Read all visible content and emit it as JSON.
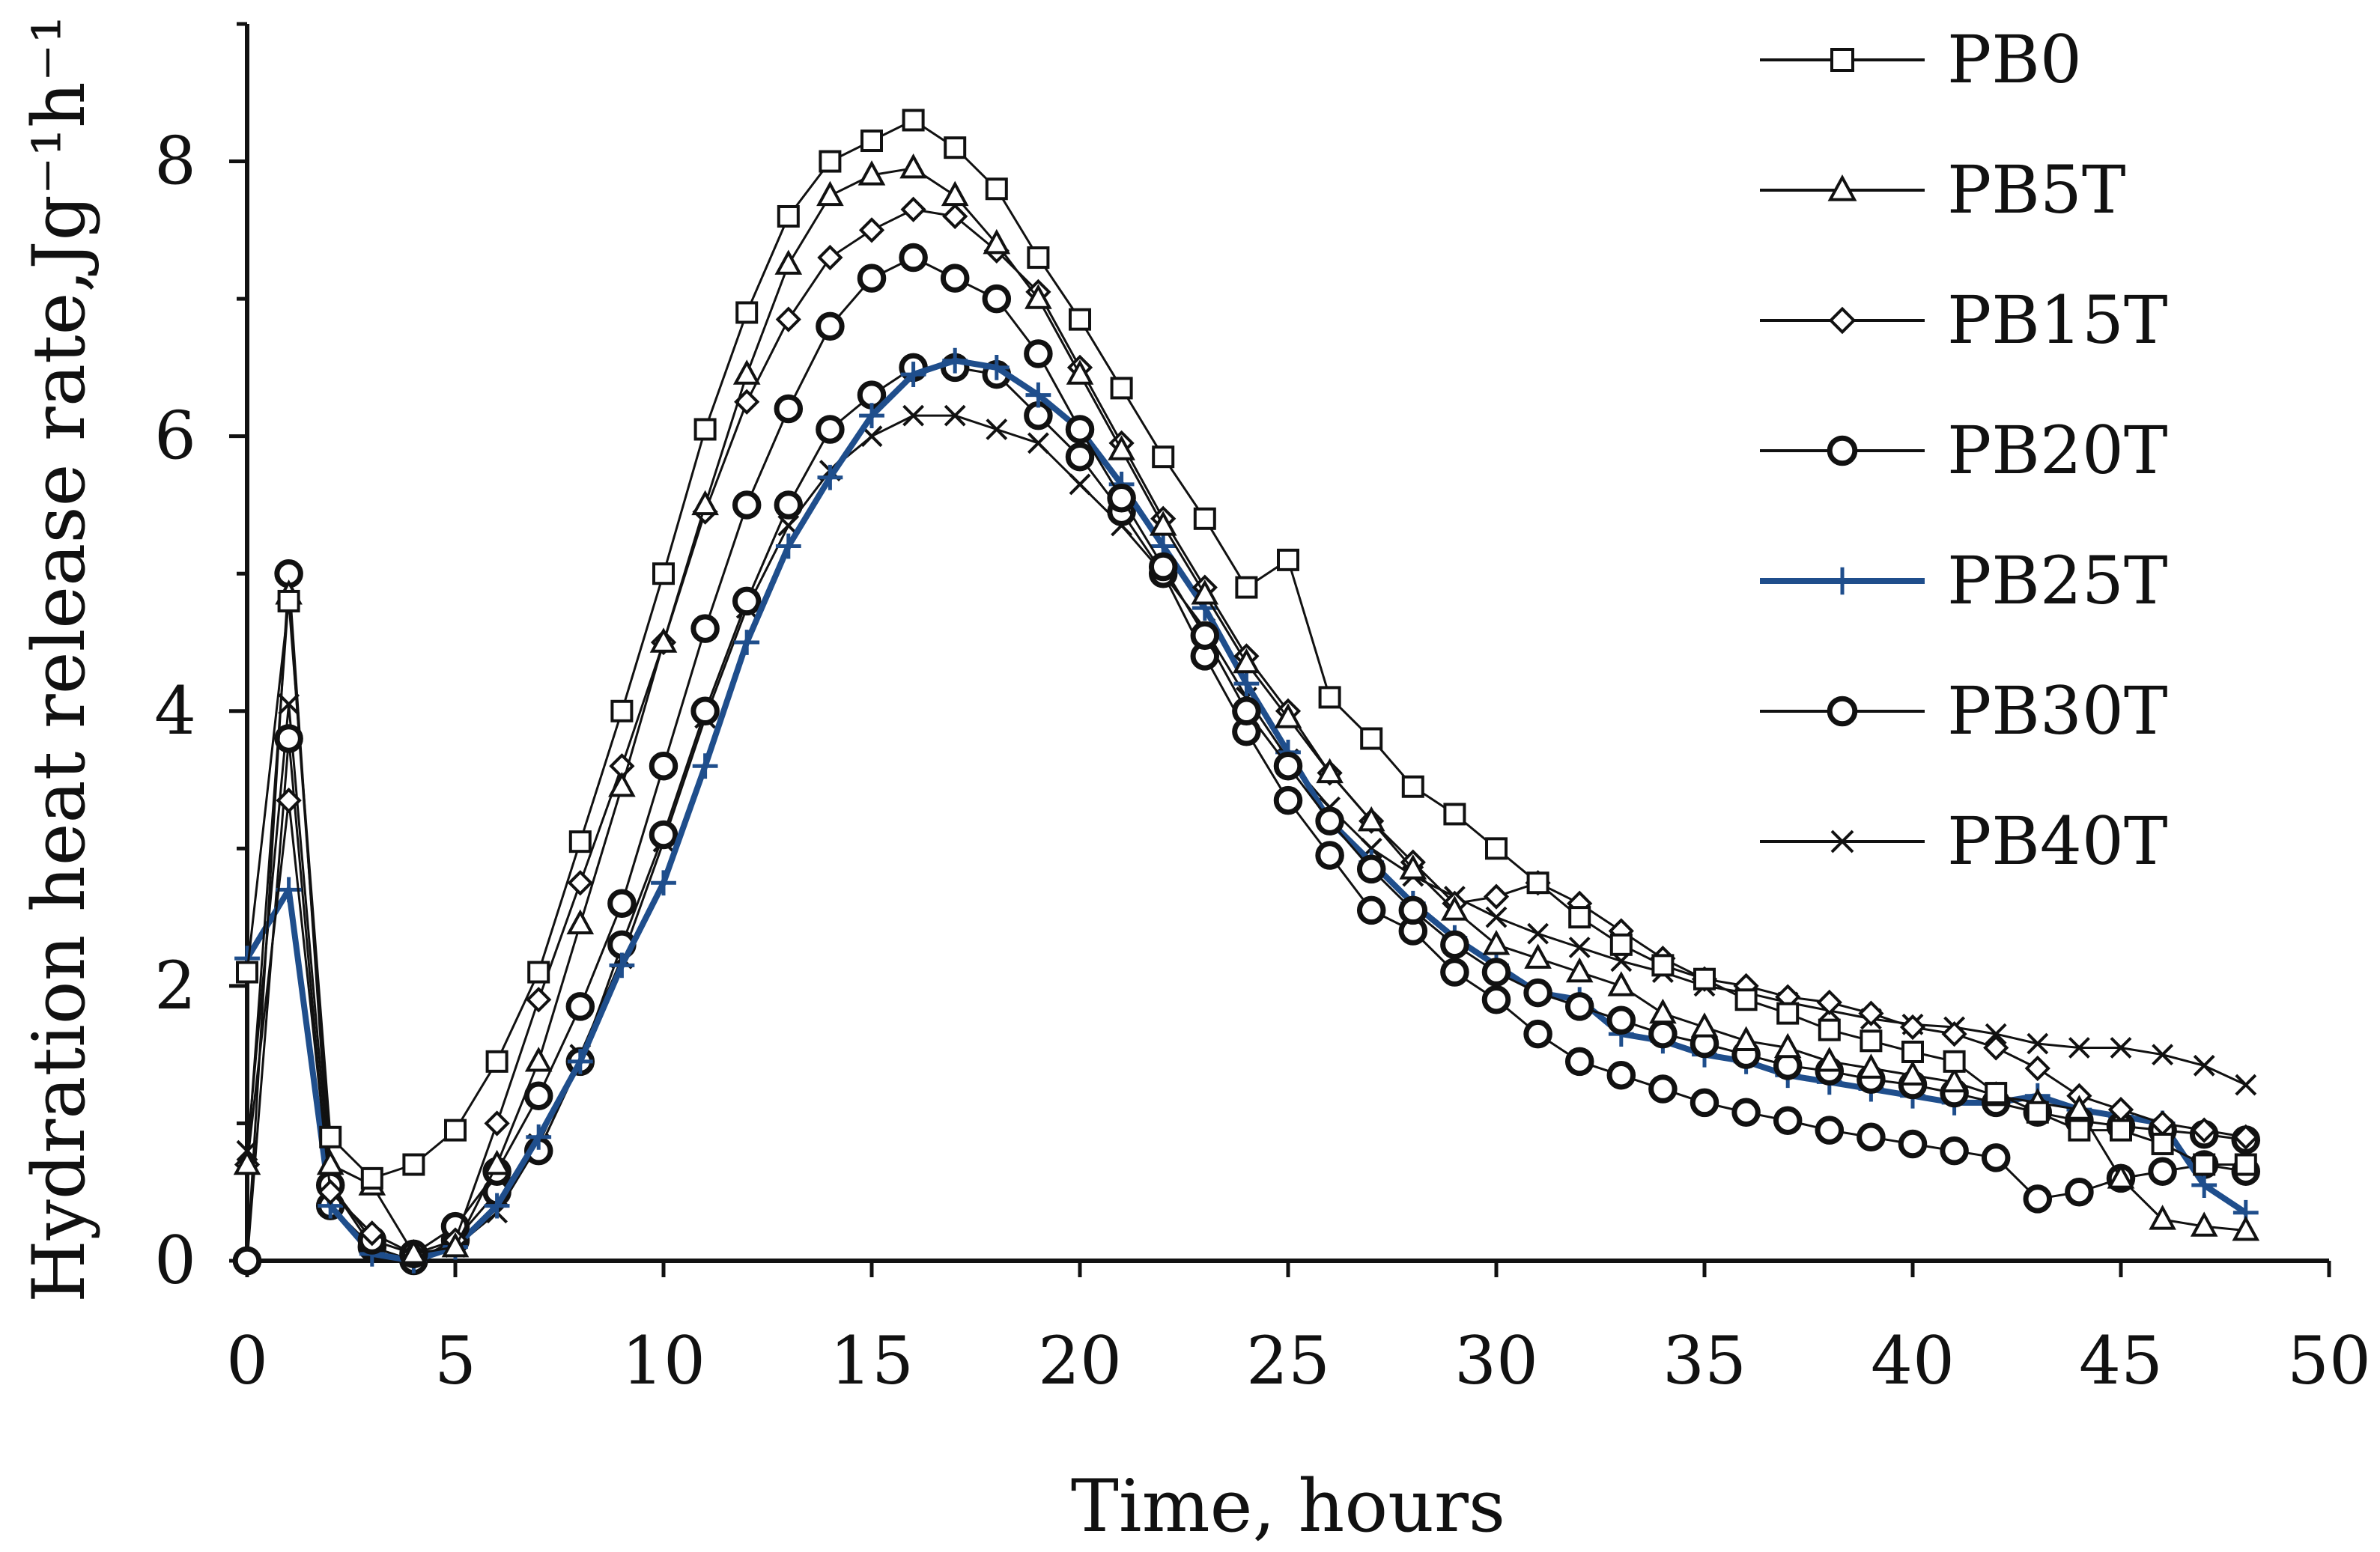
{
  "chart_data": {
    "type": "line",
    "title": "",
    "xlabel": "Time, hours",
    "ylabel": "Hydration heat release rate,Jg⁻¹h⁻¹",
    "xlim": [
      0,
      50
    ],
    "ylim": [
      0,
      9
    ],
    "xticks": [
      0,
      5,
      10,
      15,
      20,
      25,
      30,
      35,
      40,
      45,
      50
    ],
    "xtick_labels": [
      "0",
      "5",
      "10",
      "15",
      "20",
      "25",
      "30",
      "35",
      "40",
      "45",
      "50"
    ],
    "yticks": [
      0,
      2,
      4,
      6,
      8
    ],
    "ytick_labels": [
      "0",
      "2",
      "4",
      "6",
      "8"
    ],
    "grid": false,
    "legend_position": "top-right",
    "x": [
      0,
      1,
      2,
      3,
      4,
      5,
      6,
      7,
      8,
      9,
      10,
      11,
      12,
      13,
      14,
      15,
      16,
      17,
      18,
      19,
      20,
      21,
      22,
      23,
      24,
      25,
      26,
      27,
      28,
      29,
      30,
      31,
      32,
      33,
      34,
      35,
      36,
      37,
      38,
      39,
      40,
      41,
      42,
      43,
      44,
      45,
      46,
      47,
      48
    ],
    "series": [
      {
        "name": "PB0",
        "marker": "square",
        "color": "#111111",
        "values": [
          2.1,
          4.8,
          0.9,
          0.6,
          0.7,
          0.95,
          1.45,
          2.1,
          3.05,
          4.0,
          5.0,
          6.05,
          6.9,
          7.6,
          8.0,
          8.15,
          8.3,
          8.1,
          7.8,
          7.3,
          6.85,
          6.35,
          5.85,
          5.4,
          4.9,
          5.1,
          4.1,
          3.8,
          3.45,
          3.25,
          3.0,
          2.75,
          2.5,
          2.3,
          2.15,
          2.05,
          1.9,
          1.8,
          1.68,
          1.6,
          1.52,
          1.45,
          1.22,
          1.08,
          0.95,
          0.95,
          0.85,
          0.7,
          0.7
        ]
      },
      {
        "name": "PB5T",
        "marker": "triangle",
        "color": "#111111",
        "values": [
          0.7,
          4.85,
          0.7,
          0.55,
          0.05,
          0.1,
          0.7,
          1.45,
          2.45,
          3.45,
          4.5,
          5.5,
          6.45,
          7.25,
          7.75,
          7.9,
          7.95,
          7.75,
          7.4,
          7.0,
          6.45,
          5.9,
          5.35,
          4.85,
          4.35,
          3.95,
          3.55,
          3.2,
          2.85,
          2.55,
          2.3,
          2.2,
          2.1,
          2.0,
          1.8,
          1.7,
          1.6,
          1.55,
          1.45,
          1.4,
          1.35,
          1.3,
          1.2,
          1.15,
          1.1,
          0.6,
          0.3,
          0.25,
          0.22
        ]
      },
      {
        "name": "PB15T",
        "marker": "diamond",
        "color": "#111111",
        "values": [
          0.7,
          3.35,
          0.5,
          0.2,
          0.05,
          0.15,
          1.0,
          1.9,
          2.75,
          3.6,
          4.5,
          5.45,
          6.25,
          6.85,
          7.3,
          7.5,
          7.65,
          7.6,
          7.35,
          7.05,
          6.5,
          5.95,
          5.4,
          4.9,
          4.4,
          4.0,
          3.55,
          3.2,
          2.9,
          2.6,
          2.65,
          2.75,
          2.6,
          2.4,
          2.2,
          2.05,
          2.0,
          1.92,
          1.88,
          1.8,
          1.7,
          1.65,
          1.55,
          1.4,
          1.2,
          1.1,
          1.0,
          0.95,
          0.9
        ]
      },
      {
        "name": "PB20T",
        "marker": "circle",
        "color": "#111111",
        "values": [
          0.0,
          5.0,
          0.55,
          0.15,
          0.05,
          0.25,
          0.65,
          1.2,
          1.85,
          2.6,
          3.6,
          4.6,
          5.5,
          6.2,
          6.8,
          7.15,
          7.3,
          7.15,
          7.0,
          6.6,
          6.05,
          5.55,
          5.05,
          4.55,
          4.0,
          3.6,
          3.2,
          2.85,
          2.55,
          2.3,
          2.1,
          1.95,
          1.85,
          1.75,
          1.65,
          1.58,
          1.5,
          1.42,
          1.38,
          1.32,
          1.28,
          1.22,
          1.15,
          1.08,
          1.02,
          0.98,
          0.95,
          0.92,
          0.88
        ]
      },
      {
        "name": "PB25T",
        "marker": "plus",
        "color": "#1f4e8c",
        "values": [
          2.2,
          2.7,
          0.4,
          0.05,
          0.0,
          0.1,
          0.4,
          0.9,
          1.45,
          2.15,
          2.75,
          3.6,
          4.5,
          5.2,
          5.7,
          6.15,
          6.45,
          6.55,
          6.5,
          6.3,
          6.05,
          5.65,
          5.2,
          4.75,
          4.2,
          3.7,
          3.2,
          2.9,
          2.6,
          2.35,
          2.15,
          1.95,
          1.9,
          1.65,
          1.6,
          1.5,
          1.45,
          1.35,
          1.3,
          1.25,
          1.2,
          1.15,
          1.15,
          1.2,
          1.1,
          1.05,
          1.0,
          0.55,
          0.35
        ]
      },
      {
        "name": "PB30T",
        "marker": "circle",
        "color": "#111111",
        "values": [
          0.0,
          3.8,
          0.4,
          0.1,
          0.0,
          0.15,
          0.5,
          0.8,
          1.45,
          2.3,
          3.1,
          4.0,
          4.8,
          5.5,
          6.05,
          6.3,
          6.5,
          6.5,
          6.45,
          6.15,
          5.85,
          5.45,
          5.0,
          4.4,
          3.85,
          3.35,
          2.95,
          2.55,
          2.4,
          2.1,
          1.9,
          1.65,
          1.45,
          1.35,
          1.25,
          1.15,
          1.08,
          1.02,
          0.95,
          0.9,
          0.85,
          0.8,
          0.75,
          0.45,
          0.5,
          0.6,
          0.65,
          0.7,
          0.65
        ]
      },
      {
        "name": "PB40T",
        "marker": "x",
        "color": "#111111",
        "values": [
          0.8,
          4.05,
          0.55,
          0.1,
          0.0,
          0.1,
          0.35,
          0.85,
          1.5,
          2.2,
          3.05,
          3.95,
          4.75,
          5.35,
          5.75,
          6.0,
          6.15,
          6.15,
          6.05,
          5.95,
          5.65,
          5.35,
          5.0,
          4.6,
          4.1,
          3.65,
          3.3,
          3.0,
          2.8,
          2.65,
          2.5,
          2.38,
          2.28,
          2.18,
          2.1,
          2.0,
          1.95,
          1.88,
          1.82,
          1.76,
          1.72,
          1.7,
          1.65,
          1.58,
          1.55,
          1.55,
          1.5,
          1.42,
          1.28
        ]
      }
    ]
  }
}
